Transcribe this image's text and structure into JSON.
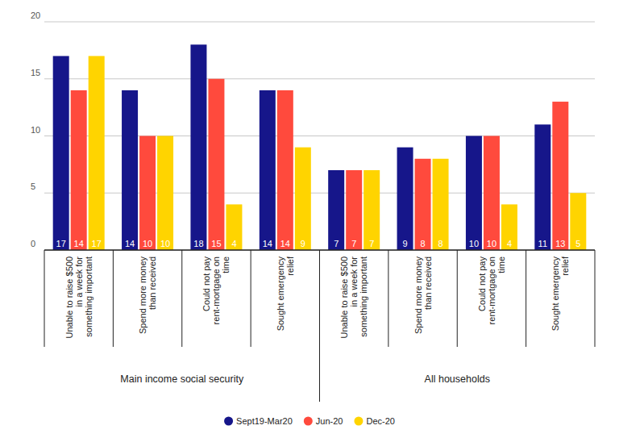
{
  "chart_data": {
    "type": "bar",
    "categories": [
      "Unable to raise $500 in a week for something important",
      "Spend more money than received",
      "Could not pay rent-mortgage on time",
      "Sought emergency relief",
      "Unable to raise $500 in a week for something important",
      "Spend more money than received",
      "Could not pay rent-mortgage on time",
      "Sought emergency relief"
    ],
    "groups": [
      {
        "label": "Main income social security",
        "count": 4
      },
      {
        "label": "All households",
        "count": 4
      }
    ],
    "series": [
      {
        "name": "Sept19-Mar20",
        "color": "#16168a",
        "values": [
          17,
          14,
          18,
          14,
          7,
          9,
          10,
          11
        ]
      },
      {
        "name": "Jun-20",
        "color": "#ff4a3d",
        "values": [
          14,
          10,
          15,
          14,
          7,
          8,
          10,
          13
        ]
      },
      {
        "name": "Dec-20",
        "color": "#ffd400",
        "values": [
          17,
          10,
          4,
          9,
          7,
          8,
          4,
          5
        ]
      }
    ],
    "ylim": [
      0,
      20
    ],
    "yticks": [
      0,
      5,
      10,
      15,
      20
    ],
    "grid": true,
    "data_labels": true,
    "legend": "bottom"
  }
}
